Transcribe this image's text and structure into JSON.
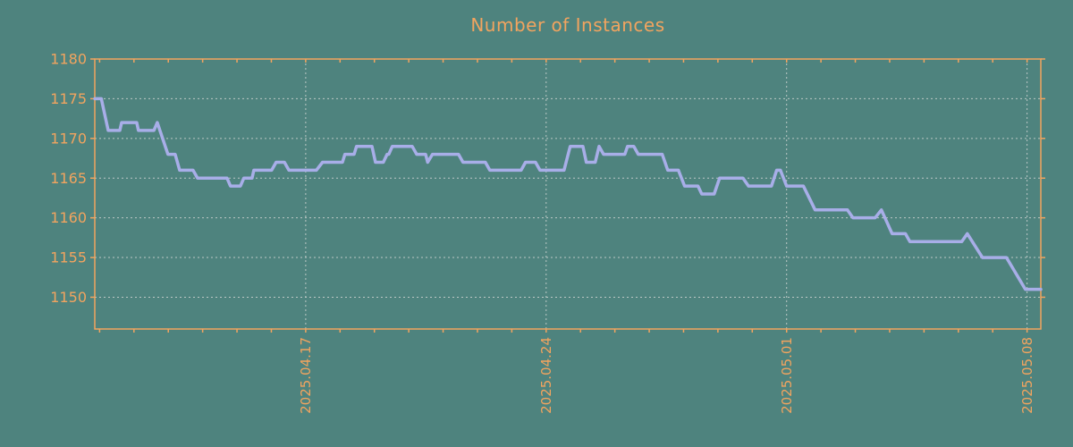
{
  "chart": {
    "title": "Number of Instances"
  },
  "style": {
    "background_color": "#4E837E",
    "axis_color": "#F2A45F",
    "line_color": "#A8AEE8",
    "grid_color": "#BCC8C5"
  },
  "chart_data": {
    "type": "line",
    "title": "Number of Instances",
    "xlabel": "",
    "ylabel": "",
    "legend": "none",
    "grid": "dashed horizontal and vertical at labeled ticks",
    "x_axis": {
      "kind": "date",
      "epoch_note": "x values are day offsets; 0 = 2025.04.10",
      "domain": [
        0.86,
        28.4
      ],
      "major_ticks": [
        {
          "day": 7,
          "label": "2025.04.17"
        },
        {
          "day": 14,
          "label": "2025.04.24"
        },
        {
          "day": 21,
          "label": "2025.05.01"
        },
        {
          "day": 28,
          "label": "2025.05.08"
        }
      ],
      "minor_tick_every": 1
    },
    "y_axis": {
      "domain": [
        1146,
        1180
      ],
      "ticks": [
        1150,
        1155,
        1160,
        1165,
        1170,
        1175,
        1180
      ]
    },
    "series": [
      {
        "name": "instances",
        "points": [
          [
            0.86,
            1175
          ],
          [
            1.05,
            1175
          ],
          [
            1.25,
            1171
          ],
          [
            1.59,
            1171
          ],
          [
            1.64,
            1172
          ],
          [
            2.08,
            1172
          ],
          [
            2.13,
            1171
          ],
          [
            2.58,
            1171
          ],
          [
            2.68,
            1172
          ],
          [
            2.99,
            1168
          ],
          [
            3.2,
            1168
          ],
          [
            3.33,
            1166
          ],
          [
            3.72,
            1166
          ],
          [
            3.85,
            1165
          ],
          [
            4.71,
            1165
          ],
          [
            4.81,
            1164
          ],
          [
            5.1,
            1164
          ],
          [
            5.2,
            1165
          ],
          [
            5.44,
            1165
          ],
          [
            5.49,
            1166
          ],
          [
            6.01,
            1166
          ],
          [
            6.14,
            1167
          ],
          [
            6.38,
            1167
          ],
          [
            6.51,
            1166
          ],
          [
            7.31,
            1166
          ],
          [
            7.49,
            1167
          ],
          [
            8.07,
            1167
          ],
          [
            8.14,
            1168
          ],
          [
            8.41,
            1168
          ],
          [
            8.48,
            1169
          ],
          [
            8.93,
            1169
          ],
          [
            9.03,
            1167
          ],
          [
            9.26,
            1167
          ],
          [
            9.37,
            1168
          ],
          [
            9.42,
            1168
          ],
          [
            9.52,
            1169
          ],
          [
            10.1,
            1169
          ],
          [
            10.23,
            1168
          ],
          [
            10.49,
            1168
          ],
          [
            10.55,
            1167
          ],
          [
            10.69,
            1168
          ],
          [
            11.45,
            1168
          ],
          [
            11.58,
            1167
          ],
          [
            12.23,
            1167
          ],
          [
            12.36,
            1166
          ],
          [
            13.27,
            1166
          ],
          [
            13.4,
            1167
          ],
          [
            13.69,
            1167
          ],
          [
            13.82,
            1166
          ],
          [
            14.52,
            1166
          ],
          [
            14.7,
            1169
          ],
          [
            15.07,
            1169
          ],
          [
            15.17,
            1167
          ],
          [
            15.43,
            1167
          ],
          [
            15.54,
            1169
          ],
          [
            15.67,
            1168
          ],
          [
            16.29,
            1168
          ],
          [
            16.37,
            1169
          ],
          [
            16.55,
            1169
          ],
          [
            16.68,
            1168
          ],
          [
            17.38,
            1168
          ],
          [
            17.54,
            1166
          ],
          [
            17.85,
            1166
          ],
          [
            18.03,
            1164
          ],
          [
            18.42,
            1164
          ],
          [
            18.53,
            1163
          ],
          [
            18.89,
            1163
          ],
          [
            19.05,
            1165
          ],
          [
            19.73,
            1165
          ],
          [
            19.89,
            1164
          ],
          [
            20.56,
            1164
          ],
          [
            20.71,
            1166
          ],
          [
            20.82,
            1166
          ],
          [
            21.0,
            1164
          ],
          [
            21.49,
            1164
          ],
          [
            21.83,
            1161
          ],
          [
            22.77,
            1161
          ],
          [
            22.93,
            1160
          ],
          [
            23.58,
            1160
          ],
          [
            23.76,
            1161
          ],
          [
            24.07,
            1158
          ],
          [
            24.46,
            1158
          ],
          [
            24.59,
            1157
          ],
          [
            26.1,
            1157
          ],
          [
            26.26,
            1158
          ],
          [
            26.7,
            1155
          ],
          [
            27.4,
            1155
          ],
          [
            27.95,
            1151
          ],
          [
            28.4,
            1151
          ]
        ]
      }
    ]
  }
}
